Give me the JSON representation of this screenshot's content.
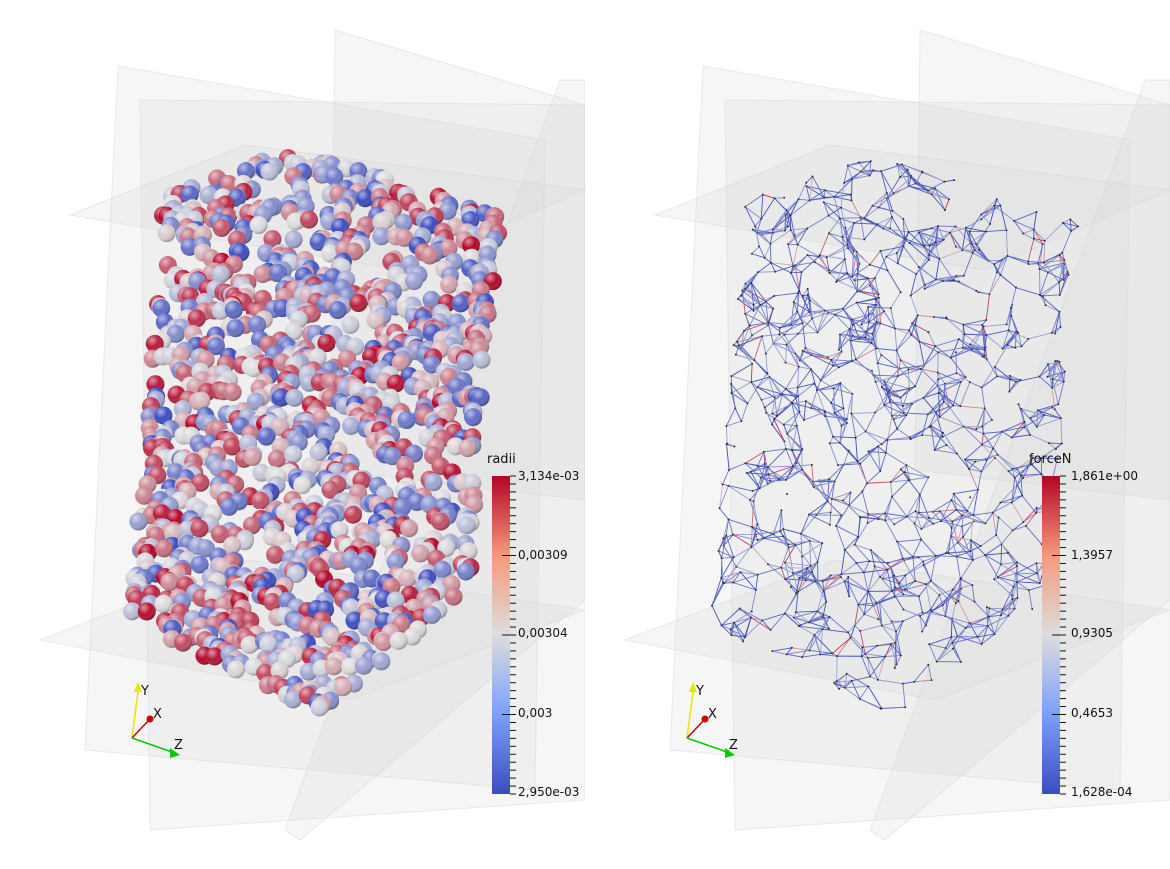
{
  "views": [
    {
      "colorbar": {
        "title": "radii",
        "labels": [
          "3,134e-03",
          "0,00309",
          "0,00304",
          "0,003",
          "2,950e-03"
        ],
        "range": [
          0.00295,
          0.003134
        ]
      },
      "representation": "spheres"
    },
    {
      "colorbar": {
        "title": "forceN",
        "labels": [
          "1,861e+00",
          "1,3957",
          "0,9305",
          "0,4653",
          "1,628e-04"
        ],
        "range": [
          0.0001628,
          1.861
        ]
      },
      "representation": "contact-network"
    }
  ],
  "axes": {
    "x": "X",
    "y": "Y",
    "z": "Z"
  },
  "colors": {
    "colormap_low": "#3b4cc0",
    "colormap_mid": "#dddddd",
    "colormap_high": "#b40426",
    "plane": "#d8d8d8",
    "axis_x": "#cc0000",
    "axis_y": "#e6e600",
    "axis_z": "#00cc00"
  }
}
